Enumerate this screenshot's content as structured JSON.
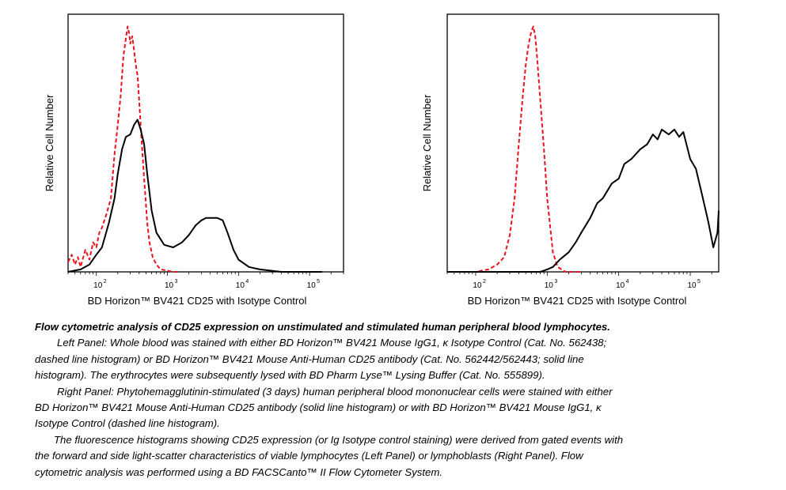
{
  "chart_data": [
    {
      "type": "line",
      "ylabel": "Relative Cell Number",
      "xlabel": "BD Horizon™ BV421 CD25 with Isotype Control",
      "xscale": "log",
      "xlim": [
        40,
        300000
      ],
      "ylim": [
        0,
        1.05
      ],
      "xticks": [
        100,
        1000,
        10000,
        100000
      ],
      "xtick_labels": [
        [
          "10",
          "2"
        ],
        [
          "10",
          "3"
        ],
        [
          "10",
          "4"
        ],
        [
          "10",
          "5"
        ]
      ],
      "series": [
        {
          "style": "dashed",
          "color": "#e8141c",
          "x": [
            40,
            45,
            50,
            55,
            60,
            70,
            80,
            90,
            100,
            110,
            120,
            140,
            160,
            180,
            200,
            220,
            240,
            260,
            275,
            290,
            300,
            320,
            340,
            360,
            380,
            400,
            430,
            470,
            520,
            560,
            620,
            700,
            800,
            1000,
            1200,
            1500
          ],
          "y": [
            0.04,
            0.07,
            0.03,
            0.06,
            0.02,
            0.09,
            0.05,
            0.12,
            0.1,
            0.16,
            0.18,
            0.24,
            0.3,
            0.48,
            0.6,
            0.72,
            0.88,
            0.95,
            1.0,
            0.97,
            0.93,
            0.96,
            0.9,
            0.84,
            0.8,
            0.7,
            0.55,
            0.38,
            0.2,
            0.12,
            0.06,
            0.03,
            0.01,
            0.005,
            0.0,
            0.0
          ]
        },
        {
          "style": "solid",
          "color": "#000000",
          "x": [
            40,
            60,
            80,
            100,
            120,
            150,
            180,
            200,
            230,
            260,
            300,
            340,
            380,
            420,
            470,
            520,
            600,
            700,
            900,
            1200,
            1600,
            2000,
            2500,
            3000,
            3500,
            4000,
            5000,
            6000,
            7000,
            8500,
            10000,
            14000,
            20000,
            40000,
            80000,
            150000
          ],
          "y": [
            0.0,
            0.01,
            0.03,
            0.07,
            0.1,
            0.2,
            0.3,
            0.4,
            0.5,
            0.55,
            0.56,
            0.6,
            0.62,
            0.58,
            0.52,
            0.4,
            0.25,
            0.16,
            0.11,
            0.1,
            0.12,
            0.15,
            0.19,
            0.21,
            0.22,
            0.22,
            0.22,
            0.21,
            0.16,
            0.09,
            0.05,
            0.02,
            0.01,
            0.0,
            0.0,
            0.0
          ]
        }
      ]
    },
    {
      "type": "line",
      "ylabel": "Relative Cell Number",
      "xlabel": "BD Horizon™ BV421 CD25 with Isotype Control",
      "xscale": "log",
      "xlim": [
        40,
        250000
      ],
      "ylim": [
        0,
        1.05
      ],
      "xticks": [
        100,
        1000,
        10000,
        100000
      ],
      "xtick_labels": [
        [
          "10",
          "2"
        ],
        [
          "10",
          "3"
        ],
        [
          "10",
          "4"
        ],
        [
          "10",
          "5"
        ]
      ],
      "series": [
        {
          "style": "dashed",
          "color": "#e8141c",
          "x": [
            40,
            100,
            150,
            200,
            250,
            300,
            350,
            400,
            450,
            500,
            550,
            600,
            640,
            680,
            720,
            800,
            900,
            1000,
            1200,
            1400,
            1800,
            3000
          ],
          "y": [
            0.0,
            0.0,
            0.01,
            0.03,
            0.06,
            0.15,
            0.3,
            0.52,
            0.7,
            0.84,
            0.93,
            0.98,
            1.0,
            0.96,
            0.88,
            0.7,
            0.5,
            0.3,
            0.08,
            0.02,
            0.0,
            0.0
          ]
        },
        {
          "style": "solid",
          "color": "#000000",
          "x": [
            40,
            500,
            800,
            1000,
            1200,
            1500,
            2000,
            2500,
            3000,
            4000,
            5000,
            6000,
            8000,
            10000,
            12000,
            15000,
            20000,
            25000,
            30000,
            35000,
            40000,
            50000,
            60000,
            70000,
            80000,
            100000,
            120000,
            150000,
            180000,
            210000,
            240000,
            250000
          ],
          "y": [
            0.0,
            0.0,
            0.0,
            0.01,
            0.02,
            0.05,
            0.08,
            0.12,
            0.16,
            0.22,
            0.28,
            0.3,
            0.36,
            0.38,
            0.44,
            0.46,
            0.5,
            0.52,
            0.56,
            0.54,
            0.58,
            0.56,
            0.58,
            0.55,
            0.57,
            0.46,
            0.42,
            0.3,
            0.2,
            0.1,
            0.16,
            0.25
          ]
        }
      ]
    }
  ],
  "caption": {
    "title": "Flow cytometric analysis of CD25 expression on unstimulated and stimulated human peripheral blood lymphocytes.",
    "p1_l1": "Left Panel: Whole blood was stained with either BD Horizon™ BV421 Mouse IgG1, κ Isotype Control (Cat. No. 562438;",
    "p1_l2": "dashed line histogram) or BD Horizon™ BV421 Mouse Anti-Human CD25 antibody (Cat. No. 562442/562443; solid line",
    "p1_l3": "histogram). The erythrocytes were subsequently lysed with BD Pharm Lyse™ Lysing Buffer (Cat. No. 555899).",
    "p2_l1": "Right Panel: Phytohemagglutinin-stimulated (3 days) human peripheral blood mononuclear cells were stained with either",
    "p2_l2": "BD Horizon™ BV421 Mouse Anti-Human CD25 antibody (solid line histogram) or with BD Horizon™ BV421 Mouse IgG1, κ",
    "p2_l3": "Isotype Control (dashed line histogram).",
    "p3_l1": "The fluorescence histograms showing CD25 expression (or Ig Isotype control staining) were derived from gated events with",
    "p3_l2": "the forward and side light-scatter characteristics of viable lymphocytes (Left Panel) or lymphoblasts (Right Panel). Flow",
    "p3_l3": "cytometric analysis was performed using a BD FACSCanto™ II Flow Cytometer System."
  }
}
